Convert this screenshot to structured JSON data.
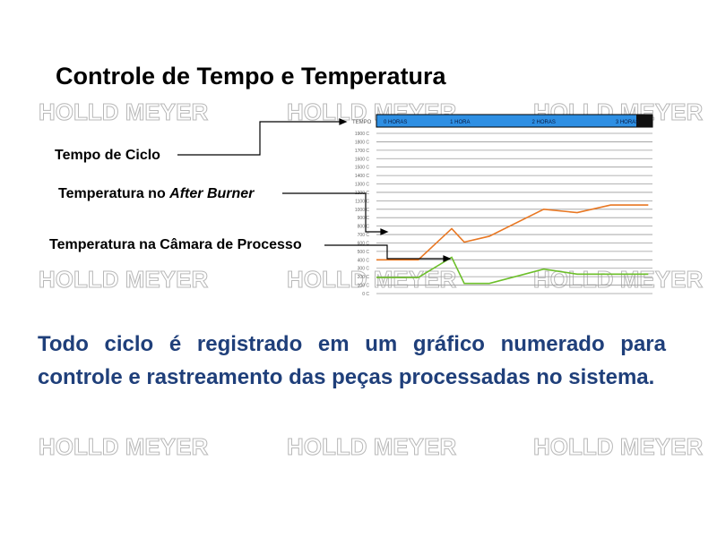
{
  "page": {
    "title": "Controle de Tempo e Temperatura",
    "watermark": "HOLLD MEYER",
    "callouts": {
      "cycle_time": "Tempo de Ciclo",
      "after_burner_prefix": "Temperatura no ",
      "after_burner_italic": "After Burner",
      "chamber": "Temperatura na Câmara de Processo"
    },
    "body": "Todo ciclo é registrado em um gráfico numerado para controle e rastreamento das peças processadas no sistema."
  },
  "colors": {
    "header_bar": "#2e8fe3",
    "after_burner_line": "#e87722",
    "chamber_line": "#6cbf2a",
    "body_text": "#1f3f7a"
  },
  "chart_data": {
    "type": "line",
    "header_label": "TEMPO",
    "x_label": "",
    "y_label": "",
    "time_labels": [
      "0 HORAS",
      "1 HORA",
      "2 HORAS",
      "3 HORAS"
    ],
    "y_ticks": [
      "1900 C",
      "1800 C",
      "1700 C",
      "1600 C",
      "1500 C",
      "1400 C",
      "1300 C",
      "1200 C",
      "1100 C",
      "1000 C",
      "900 C",
      "800 C",
      "700 C",
      "600 C",
      "500 C",
      "400 C",
      "300 C",
      "200 C",
      "100 C",
      "0 C"
    ],
    "x_range": [
      0,
      3.3
    ],
    "y_range": [
      0,
      2000
    ],
    "grid": true,
    "series": [
      {
        "name": "",
        "color": "#e87722",
        "x": [
          0,
          0.5,
          0.9,
          1.05,
          1.35,
          2.0,
          2.4,
          2.8,
          3.25
        ],
        "y": [
          400,
          400,
          770,
          610,
          680,
          1000,
          960,
          1050,
          1050
        ]
      },
      {
        "name": "",
        "color": "#6cbf2a",
        "x": [
          0,
          0.5,
          0.9,
          1.05,
          1.35,
          2.0,
          2.4,
          2.8,
          3.25
        ],
        "y": [
          190,
          190,
          430,
          120,
          120,
          290,
          230,
          230,
          230
        ]
      }
    ]
  }
}
